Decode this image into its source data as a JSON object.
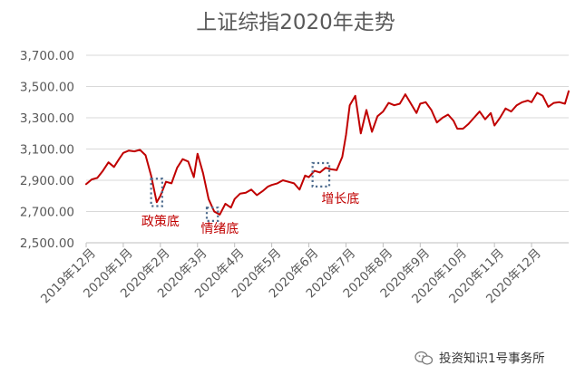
{
  "chart_data": {
    "type": "line",
    "title": "上证综指2020年走势",
    "xlabel": "",
    "ylabel": "",
    "ylim": [
      2500,
      3700
    ],
    "y_ticks": [
      "2,500.00",
      "2,700.00",
      "2,900.00",
      "3,100.00",
      "3,300.00",
      "3,500.00",
      "3,700.00"
    ],
    "y_tick_values": [
      2500,
      2700,
      2900,
      3100,
      3300,
      3500,
      3700
    ],
    "x_ticks": [
      "2019年12月",
      "2020年1月",
      "2020年2月",
      "2020年3月",
      "2020年4月",
      "2020年5月",
      "2020年6月",
      "2020年7月",
      "2020年8月",
      "2020年9月",
      "2020年10月",
      "2020年11月",
      "2020年12月"
    ],
    "x_range": [
      0,
      13
    ],
    "grid": true,
    "series_color": "#c00000",
    "series": [
      {
        "x": [
          0.0,
          0.15,
          0.3,
          0.45,
          0.6,
          0.75,
          0.9,
          1.0,
          1.15,
          1.3,
          1.45,
          1.6,
          1.75,
          1.9,
          2.0,
          2.15,
          2.3,
          2.45,
          2.6,
          2.75,
          2.9,
          3.0,
          3.15,
          3.3,
          3.45,
          3.6,
          3.75,
          3.9,
          4.0,
          4.15,
          4.3,
          4.45,
          4.6,
          4.75,
          4.9,
          5.0,
          5.15,
          5.3,
          5.45,
          5.6,
          5.75,
          5.9,
          6.0,
          6.15,
          6.3,
          6.45,
          6.6,
          6.75,
          6.9,
          7.0,
          7.1,
          7.25,
          7.4,
          7.55,
          7.7,
          7.85,
          8.0,
          8.15,
          8.3,
          8.45,
          8.6,
          8.75,
          8.9,
          9.0,
          9.15,
          9.3,
          9.45,
          9.6,
          9.75,
          9.9,
          10.0,
          10.15,
          10.3,
          10.45,
          10.6,
          10.75,
          10.9,
          11.0,
          11.15,
          11.3,
          11.45,
          11.6,
          11.75,
          11.9,
          12.0,
          12.15,
          12.3,
          12.45,
          12.6,
          12.75,
          12.9,
          13.0
        ],
        "values": [
          2875,
          2905,
          2915,
          2960,
          3015,
          2985,
          3040,
          3075,
          3090,
          3085,
          3095,
          3060,
          2930,
          2760,
          2800,
          2890,
          2880,
          2980,
          3035,
          3020,
          2920,
          3070,
          2945,
          2780,
          2700,
          2680,
          2750,
          2725,
          2780,
          2815,
          2820,
          2840,
          2805,
          2830,
          2860,
          2870,
          2880,
          2900,
          2890,
          2880,
          2840,
          2930,
          2920,
          2960,
          2950,
          2980,
          2970,
          2965,
          3050,
          3190,
          3380,
          3440,
          3200,
          3350,
          3210,
          3310,
          3340,
          3395,
          3380,
          3390,
          3450,
          3390,
          3330,
          3390,
          3400,
          3350,
          3270,
          3300,
          3320,
          3280,
          3230,
          3230,
          3260,
          3300,
          3340,
          3290,
          3330,
          3250,
          3300,
          3360,
          3340,
          3380,
          3400,
          3410,
          3400,
          3460,
          3440,
          3370,
          3395,
          3400,
          3390,
          3470
        ]
      }
    ],
    "annotations": [
      {
        "label": "政策底",
        "box_x": [
          1.75,
          2.05
        ],
        "box_y": [
          2735,
          2910
        ],
        "label_x": 2.0,
        "label_y": 2610
      },
      {
        "label": "情绪底",
        "box_x": [
          3.25,
          3.55
        ],
        "box_y": [
          2640,
          2725
        ],
        "label_x": 3.6,
        "label_y": 2565
      },
      {
        "label": "增长底",
        "box_x": [
          6.1,
          6.55
        ],
        "box_y": [
          2860,
          3010
        ],
        "label_x": 6.85,
        "label_y": 2755
      }
    ]
  },
  "watermark": {
    "icon": "wechat-icon",
    "text": "投资知识1号事务所"
  }
}
